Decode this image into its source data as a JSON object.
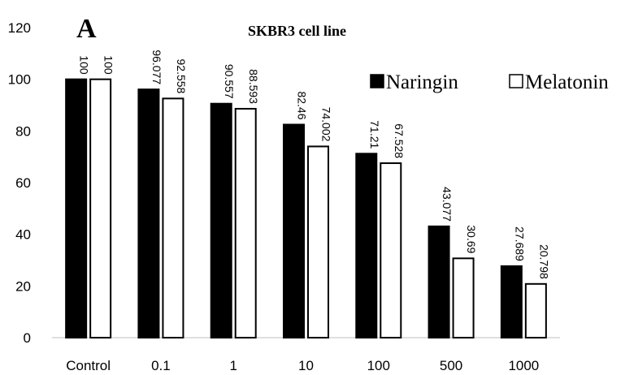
{
  "chart_data": {
    "type": "bar",
    "panel_label": "A",
    "title": "SKBR3 cell line",
    "xlabel": "",
    "ylabel": "",
    "categories": [
      "Control",
      "0.1",
      "1",
      "10",
      "100",
      "500",
      "1000"
    ],
    "series": [
      {
        "name": "Naringin",
        "color": "#000000",
        "values": [
          100,
          96.077,
          90.557,
          82.46,
          71.21,
          43.077,
          27.689
        ]
      },
      {
        "name": "Melatonin",
        "color": "#ffffff",
        "values": [
          100,
          92.558,
          88.593,
          74.002,
          67.528,
          30.69,
          20.798
        ]
      }
    ],
    "data_labels": [
      [
        "100",
        "96.077",
        "90.557",
        "82.46",
        "71.21",
        "43.077",
        "27.689"
      ],
      [
        "100",
        "92.558",
        "88.593",
        "74.002",
        "67.528",
        "30.69",
        "20.798"
      ]
    ],
    "ylim": [
      0,
      120
    ],
    "yticks": [
      "0",
      "20",
      "40",
      "60",
      "80",
      "100",
      "120"
    ],
    "grid": false,
    "legend_position": "top-right"
  }
}
